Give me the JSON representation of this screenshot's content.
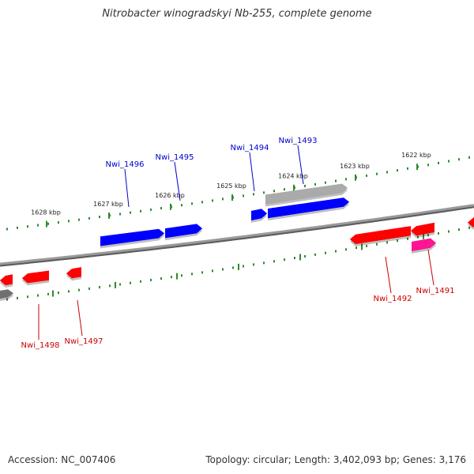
{
  "title": "Nitrobacter winogradskyi Nb-255, complete genome",
  "accession": "Accession: NC_007406",
  "summary": "Topology: circular; Length: 3,402,093 bp; Genes: 3,176",
  "colors": {
    "backbone": "#808080",
    "tick": "#2e8b2e",
    "plus_strand": "#0000ff",
    "minus_strand": "#ff0000",
    "pink_gene": "#ff1493",
    "gray_gene": "#aaaaaa",
    "plus_label": "#0000cc",
    "minus_label": "#cc0000"
  },
  "coordinate_labels": [
    "1628 kbp",
    "1627 kbp",
    "1626 kbp",
    "1625 kbp",
    "1624 kbp",
    "1623 kbp",
    "1622 kbp"
  ],
  "genes_plus": [
    "Nwi_1496",
    "Nwi_1495",
    "Nwi_1494",
    "Nwi_1493"
  ],
  "genes_minus": [
    "Nwi_1498",
    "Nwi_1497",
    "Nwi_1492",
    "Nwi_1491"
  ]
}
